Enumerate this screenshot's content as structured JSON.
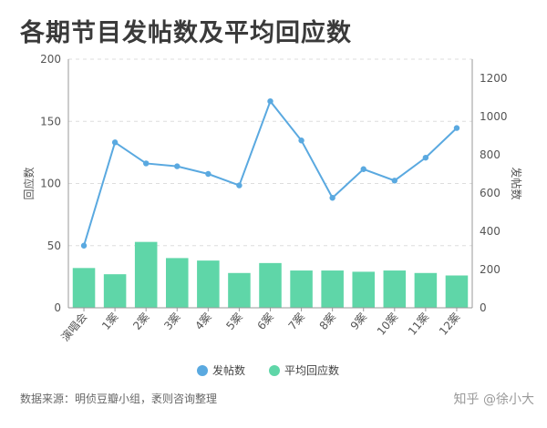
{
  "title": "各期节目发帖数及平均回应数",
  "source": "数据来源：明侦豆瓣小组，袤则咨询整理",
  "watermark": "知乎 @徐小大",
  "chart_data": {
    "type": "bar+line",
    "categories": [
      "演唱会",
      "1案",
      "2案",
      "3案",
      "4案",
      "5案",
      "6案",
      "7案",
      "8案",
      "9案",
      "10案",
      "11案",
      "12案"
    ],
    "series": [
      {
        "name": "发帖数",
        "type": "line",
        "axis": "right",
        "color": "#5aa9e0",
        "values": [
          325,
          865,
          755,
          740,
          700,
          640,
          1080,
          875,
          575,
          725,
          665,
          785,
          940
        ]
      },
      {
        "name": "平均回应数",
        "type": "bar",
        "axis": "left",
        "color": "#5fd6a8",
        "values": [
          32,
          27,
          53,
          40,
          38,
          28,
          36,
          30,
          30,
          29,
          30,
          28,
          26
        ]
      }
    ],
    "left_axis": {
      "label": "回应数",
      "ylim": [
        0,
        200
      ],
      "ticks": [
        0,
        50,
        100,
        150,
        200
      ]
    },
    "right_axis": {
      "label": "发帖数",
      "ylim": [
        0,
        1300
      ],
      "ticks": [
        0,
        200,
        400,
        600,
        800,
        1000,
        1200
      ]
    },
    "grid": true,
    "legend_position": "bottom"
  }
}
